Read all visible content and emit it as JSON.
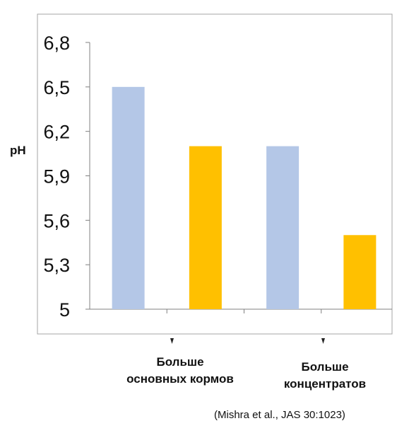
{
  "chart_data": {
    "type": "bar",
    "ylabel": "pH",
    "ylim": [
      5,
      6.8
    ],
    "y_ticks": [
      "6,8",
      "6,5",
      "6,2",
      "5,9",
      "5,6",
      "5,3",
      "5"
    ],
    "y_tick_values": [
      6.8,
      6.5,
      6.2,
      5.9,
      5.6,
      5.3,
      5.0
    ],
    "grid": false,
    "legend": "none",
    "groups": [
      {
        "label_line1": "Больше",
        "label_line2": "основных кормов"
      },
      {
        "label_line1": "Больше",
        "label_line2": "концентратов"
      }
    ],
    "series": [
      {
        "color": "#b4c7e7",
        "values": [
          6.5,
          6.1
        ]
      },
      {
        "color": "#ffc000",
        "values": [
          6.1,
          5.5
        ]
      }
    ],
    "citation": "(Mishra et al., JAS 30:1023)"
  }
}
